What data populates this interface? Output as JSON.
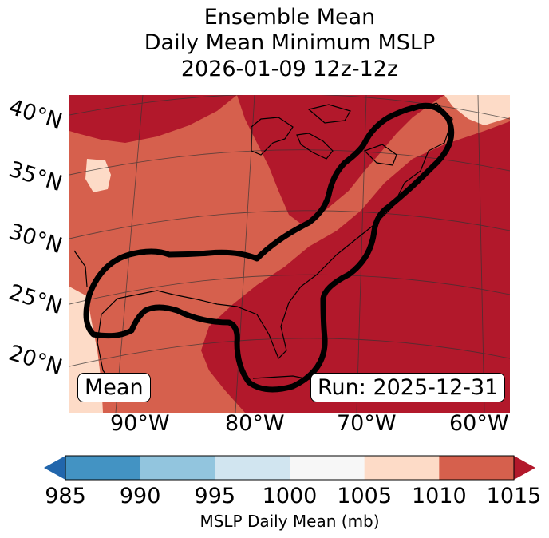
{
  "titles": [
    "Ensemble Mean",
    "Daily Mean Minimum MSLP",
    "2026-01-09 12z-12z"
  ],
  "lat_labels": [
    "40°N",
    "35°N",
    "30°N",
    "25°N",
    "20°N"
  ],
  "lon_labels": [
    "90°W",
    "80°W",
    "70°W",
    "60°W"
  ],
  "mean_box": "Mean",
  "run_box": "Run: 2025-12-31",
  "colorbar": {
    "label": "MSLP Daily Mean (mb)",
    "ticks": [
      "985",
      "990",
      "995",
      "1000",
      "1005",
      "1010",
      "1015"
    ],
    "colors": [
      "#2166ac",
      "#4393c3",
      "#92c5de",
      "#d1e5f0",
      "#f7f7f7",
      "#fddbc7",
      "#d6604d",
      "#b2182b"
    ]
  },
  "map_colors": {
    "light": "#fddbc7",
    "mid": "#d6604d",
    "dark": "#b2182b"
  }
}
